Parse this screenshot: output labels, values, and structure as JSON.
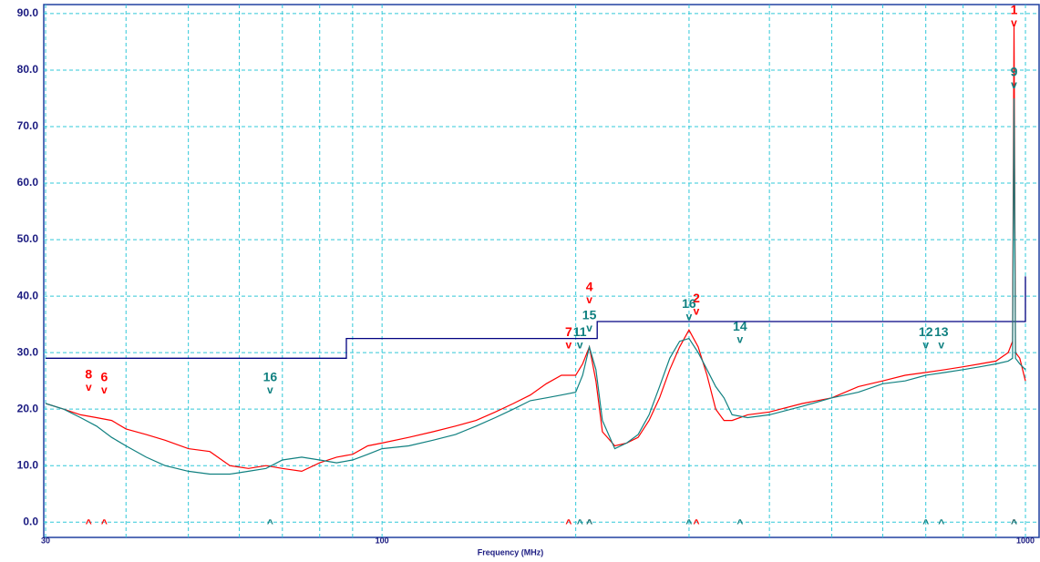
{
  "chart_data": {
    "type": "line",
    "x_label": "Frequency (MHz)",
    "log_x": true,
    "grid": true,
    "xlim": [
      29.8,
      1050
    ],
    "ylim": [
      -2.7,
      91.6
    ],
    "xticks": [
      30,
      100,
      1000
    ],
    "minor_xticks": [
      40,
      50,
      60,
      70,
      80,
      90,
      200,
      300,
      400,
      500,
      600,
      700,
      800,
      900
    ],
    "yticks": [
      {
        "value": 0,
        "label": "0.0"
      },
      {
        "value": 10,
        "label": "10.0"
      },
      {
        "value": 20,
        "label": "20.0"
      },
      {
        "value": 30,
        "label": "30.0"
      },
      {
        "value": 40,
        "label": "40.0"
      },
      {
        "value": 50,
        "label": "50.0"
      },
      {
        "value": 60,
        "label": "60.0"
      },
      {
        "value": 70,
        "label": "70.0"
      },
      {
        "value": 80,
        "label": "80.0"
      },
      {
        "value": 90,
        "label": "90.0"
      }
    ],
    "x": [
      30,
      32,
      34,
      36,
      38,
      40,
      43,
      46,
      50,
      54,
      58,
      62,
      66,
      70,
      75,
      80,
      85,
      90,
      95,
      100,
      110,
      120,
      130,
      140,
      150,
      160,
      170,
      180,
      190,
      200,
      205,
      210,
      215,
      220,
      230,
      240,
      250,
      260,
      270,
      280,
      290,
      300,
      310,
      320,
      330,
      340,
      350,
      370,
      400,
      450,
      500,
      550,
      600,
      650,
      700,
      750,
      800,
      850,
      900,
      940,
      955,
      960,
      965,
      980,
      1000
    ],
    "series": [
      {
        "color": "#ff0000",
        "values": [
          21,
          20,
          19,
          18.5,
          18,
          16.5,
          15.5,
          14.5,
          13,
          12.5,
          10,
          9.5,
          10,
          9.5,
          9,
          10.5,
          11.5,
          12,
          13.5,
          14,
          15,
          16,
          17,
          18,
          19.5,
          21,
          22.5,
          24.5,
          26,
          26,
          28,
          31,
          25,
          16,
          13.5,
          14,
          15,
          18,
          22,
          27,
          31,
          34,
          31,
          26,
          20,
          18,
          18,
          19,
          19.5,
          21,
          22,
          24,
          25,
          26,
          26.5,
          27,
          27.5,
          28,
          28.5,
          30,
          32,
          88,
          30,
          29,
          25
        ]
      },
      {
        "color": "#108080",
        "values": [
          21,
          20,
          18.5,
          17,
          15,
          13.5,
          11.5,
          10,
          9,
          8.5,
          8.5,
          9,
          9.5,
          11,
          11.5,
          11,
          10.5,
          11,
          12,
          13,
          13.5,
          14.5,
          15.5,
          17,
          18.5,
          20,
          21.5,
          22,
          22.5,
          23,
          26,
          31,
          27,
          18,
          13,
          14,
          15.5,
          19,
          24,
          29,
          32,
          32.5,
          30,
          27,
          24,
          22,
          19,
          18.5,
          19,
          20.5,
          22,
          23,
          24.5,
          25,
          26,
          26.5,
          27,
          27.5,
          28,
          28.5,
          29,
          75,
          29,
          28,
          27
        ]
      }
    ],
    "limit": {
      "color": "#000080",
      "x": [
        30,
        88,
        88,
        216,
        216,
        1000,
        1000
      ],
      "values": [
        29,
        29,
        32.5,
        32.5,
        35.5,
        35.5,
        43.5
      ]
    },
    "markers": [
      {
        "label": "1",
        "series": 0,
        "x": 960,
        "level": 86
      },
      {
        "label": "2",
        "series": 0,
        "x": 308,
        "level": 35
      },
      {
        "label": "4",
        "series": 0,
        "x": 210,
        "level": 37
      },
      {
        "label": "6",
        "series": 0,
        "x": 37,
        "level": 21
      },
      {
        "label": "7",
        "series": 0,
        "x": 195,
        "level": 29
      },
      {
        "label": "8",
        "series": 0,
        "x": 35,
        "level": 21.5
      },
      {
        "label": "9",
        "series": 1,
        "x": 960,
        "level": 75
      },
      {
        "label": "16",
        "series": 1,
        "x": 300,
        "level": 34
      },
      {
        "label": "16",
        "series": 1,
        "x": 67,
        "level": 21
      },
      {
        "label": "15",
        "series": 1,
        "x": 210,
        "level": 32
      },
      {
        "label": "11",
        "series": 1,
        "x": 203,
        "level": 29
      },
      {
        "label": "14",
        "series": 1,
        "x": 360,
        "level": 30
      },
      {
        "label": "12",
        "series": 1,
        "x": 700,
        "level": 29
      },
      {
        "label": "13",
        "series": 1,
        "x": 740,
        "level": 29
      }
    ]
  }
}
